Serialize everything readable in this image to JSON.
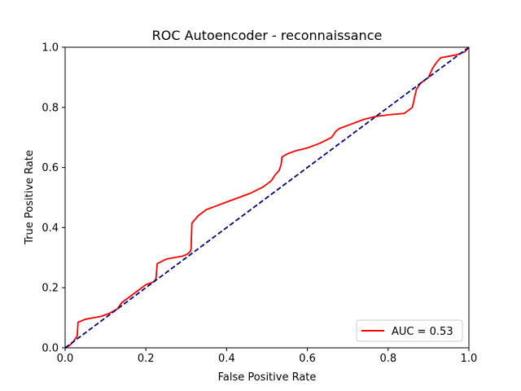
{
  "chart_data": {
    "type": "line",
    "title": "ROC Autoencoder - reconnaissance",
    "xlabel": "False Positive Rate",
    "ylabel": "True Positive Rate",
    "xlim": [
      0.0,
      1.0
    ],
    "ylim": [
      0.0,
      1.0
    ],
    "xticks": [
      "0.0",
      "0.2",
      "0.4",
      "0.6",
      "0.8",
      "1.0"
    ],
    "yticks": [
      "0.0",
      "0.2",
      "0.4",
      "0.6",
      "0.8",
      "1.0"
    ],
    "grid": false,
    "legend_position": "lower right",
    "series": [
      {
        "name": "AUC = 0.53",
        "color": "#ff0000",
        "style": "solid",
        "x": [
          0.0,
          0.01,
          0.02,
          0.03,
          0.032,
          0.05,
          0.07,
          0.09,
          0.11,
          0.13,
          0.14,
          0.16,
          0.18,
          0.2,
          0.22,
          0.225,
          0.228,
          0.25,
          0.27,
          0.29,
          0.3,
          0.31,
          0.312,
          0.314,
          0.33,
          0.35,
          0.37,
          0.4,
          0.43,
          0.46,
          0.49,
          0.51,
          0.52,
          0.53,
          0.535,
          0.537,
          0.55,
          0.57,
          0.6,
          0.63,
          0.66,
          0.67,
          0.68,
          0.7,
          0.72,
          0.74,
          0.77,
          0.8,
          0.84,
          0.86,
          0.865,
          0.87,
          0.88,
          0.9,
          0.91,
          0.92,
          0.93,
          0.95,
          0.97,
          0.99,
          1.0
        ],
        "y": [
          0.0,
          0.007,
          0.02,
          0.04,
          0.085,
          0.095,
          0.1,
          0.105,
          0.115,
          0.13,
          0.15,
          0.17,
          0.19,
          0.21,
          0.22,
          0.23,
          0.28,
          0.295,
          0.3,
          0.305,
          0.31,
          0.32,
          0.33,
          0.415,
          0.44,
          0.46,
          0.47,
          0.485,
          0.5,
          0.515,
          0.535,
          0.555,
          0.575,
          0.59,
          0.61,
          0.635,
          0.645,
          0.655,
          0.665,
          0.68,
          0.7,
          0.72,
          0.73,
          0.74,
          0.75,
          0.76,
          0.77,
          0.775,
          0.78,
          0.8,
          0.83,
          0.86,
          0.88,
          0.9,
          0.93,
          0.95,
          0.965,
          0.97,
          0.975,
          0.985,
          1.0
        ]
      },
      {
        "name": "",
        "color": "#000080",
        "style": "dashed",
        "x": [
          0.0,
          1.0
        ],
        "y": [
          0.0,
          1.0
        ]
      }
    ],
    "legend": [
      {
        "label": "AUC = 0.53",
        "color": "#ff0000"
      }
    ]
  }
}
